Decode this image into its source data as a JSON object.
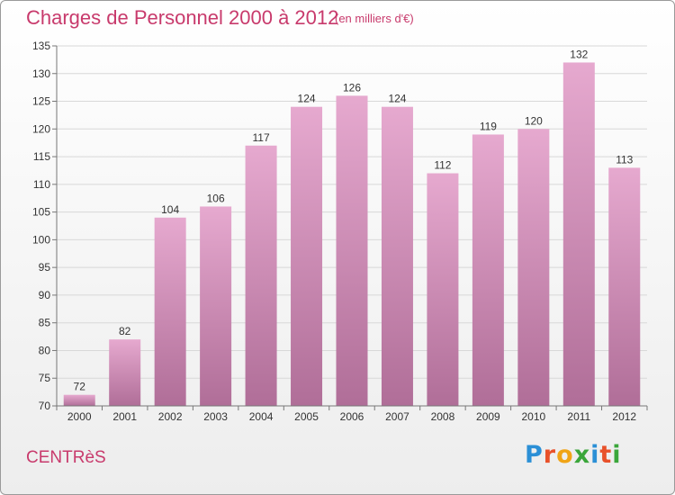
{
  "header": {
    "title": "Charges de Personnel 2000 à 2012",
    "subtitle": "(en milliers d'€)"
  },
  "footer": {
    "place": "CENTRèS",
    "logo": "Proxiti"
  },
  "colors": {
    "title": "#c83a6c",
    "bar_top": "#e6a9cf",
    "bar_bottom": "#b06e98",
    "grid": "#d8d8d8",
    "axis": "#777777"
  },
  "chart_data": {
    "type": "bar",
    "title": "Charges de Personnel 2000 à 2012",
    "subtitle": "(en milliers d'€)",
    "categories": [
      "2000",
      "2001",
      "2002",
      "2003",
      "2004",
      "2005",
      "2006",
      "2007",
      "2008",
      "2009",
      "2010",
      "2011",
      "2012"
    ],
    "values": [
      72,
      82,
      104,
      106,
      117,
      124,
      126,
      124,
      112,
      119,
      120,
      132,
      113
    ],
    "ylim": [
      70,
      135
    ],
    "yticks": [
      70,
      75,
      80,
      85,
      90,
      95,
      100,
      105,
      110,
      115,
      120,
      125,
      130,
      135
    ],
    "grid": true,
    "data_labels": true
  }
}
